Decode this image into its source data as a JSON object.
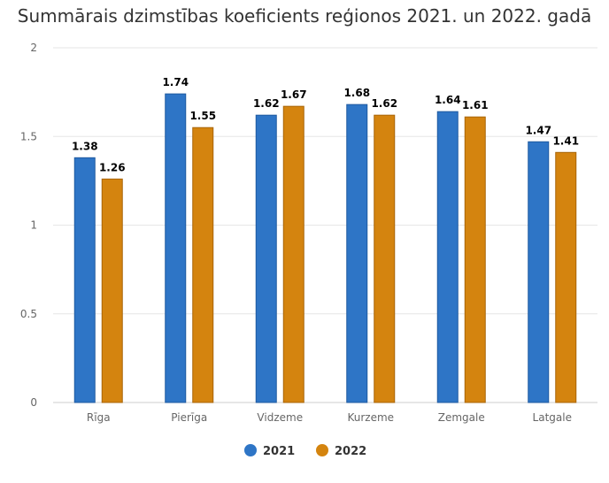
{
  "chart_data": {
    "type": "bar",
    "title": "Summārais dzimstības koeficients reģionos 2021. un 2022. gadā",
    "categories": [
      "Rīga",
      "Pierīga",
      "Vidzeme",
      "Kurzeme",
      "Zemgale",
      "Latgale"
    ],
    "series": [
      {
        "name": "2021",
        "color": "#2e75c6",
        "values": [
          1.38,
          1.74,
          1.62,
          1.68,
          1.64,
          1.47
        ]
      },
      {
        "name": "2022",
        "color": "#d4840f",
        "values": [
          1.26,
          1.55,
          1.67,
          1.62,
          1.61,
          1.41
        ]
      }
    ],
    "yticks": [
      "0",
      "0.5",
      "1",
      "1.5",
      "2"
    ],
    "ylim": [
      0,
      2
    ],
    "grid": true,
    "legend": "bottom-center"
  }
}
